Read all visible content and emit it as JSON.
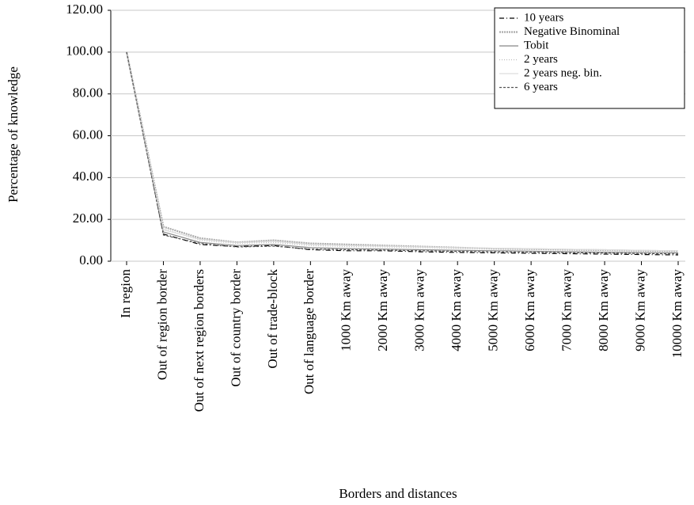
{
  "chart_data": {
    "type": "line",
    "xlabel": "Borders and distances",
    "ylabel": "Percentage of knowledge",
    "categories": [
      "In region",
      "Out of region border",
      "Out of next region borders",
      "Out of country border",
      "Out of trade-block",
      "Out of language border",
      "1000 Km away",
      "2000 Km away",
      "3000 Km away",
      "4000 Km away",
      "5000 Km away",
      "6000 Km away",
      "7000 Km away",
      "8000 Km away",
      "9000 Km away",
      "10000 Km away"
    ],
    "series": [
      {
        "name": "10 years",
        "color": "#000000",
        "dash": "dashdot",
        "values": [
          100,
          13,
          8,
          7,
          7.5,
          5.5,
          5,
          5,
          4.5,
          4.2,
          4,
          3.8,
          3.6,
          3.4,
          3.2,
          3
        ]
      },
      {
        "name": "Negative Binominal",
        "color": "#aaaaaa",
        "dash": "thick",
        "values": [
          100,
          16.5,
          11,
          9,
          10,
          8.5,
          8,
          7.5,
          7,
          6.5,
          6,
          5.8,
          5.5,
          5.3,
          5,
          4.8
        ]
      },
      {
        "name": "Tobit",
        "color": "#888888",
        "dash": "solid",
        "values": [
          100,
          14,
          9,
          7.5,
          8,
          6.5,
          6,
          5.8,
          5.5,
          5.2,
          5,
          4.8,
          4.5,
          4.3,
          4.1,
          4
        ]
      },
      {
        "name": "2 years",
        "color": "#bbbbbb",
        "dash": "dotted",
        "values": [
          100,
          15.5,
          10,
          8.5,
          9,
          7.5,
          7,
          6.8,
          6.5,
          6.2,
          6,
          5.7,
          5.5,
          5.2,
          5,
          4.8
        ]
      },
      {
        "name": "2 years neg. bin.",
        "color": "#dddddd",
        "dash": "solid",
        "values": [
          100,
          15,
          10.5,
          8.8,
          9.5,
          8,
          7.5,
          7.2,
          6.8,
          6.5,
          6.2,
          6,
          5.7,
          5.5,
          5.2,
          5
        ]
      },
      {
        "name": "6 years",
        "color": "#555555",
        "dash": "dashed",
        "values": [
          100,
          12.5,
          8.5,
          6.8,
          7.2,
          5.8,
          5.5,
          5.3,
          5,
          4.7,
          4.5,
          4.3,
          4.1,
          3.9,
          3.7,
          3.5
        ]
      }
    ],
    "ylim": [
      0,
      120
    ],
    "yticks": [
      {
        "value": 0,
        "label": "0.00"
      },
      {
        "value": 20,
        "label": "20.00"
      },
      {
        "value": 40,
        "label": "40.00"
      },
      {
        "value": 60,
        "label": "60.00"
      },
      {
        "value": 80,
        "label": "80.00"
      },
      {
        "value": 100,
        "label": "100.00"
      },
      {
        "value": 120,
        "label": "120.00"
      }
    ],
    "grid": true,
    "legend": "top-right"
  }
}
